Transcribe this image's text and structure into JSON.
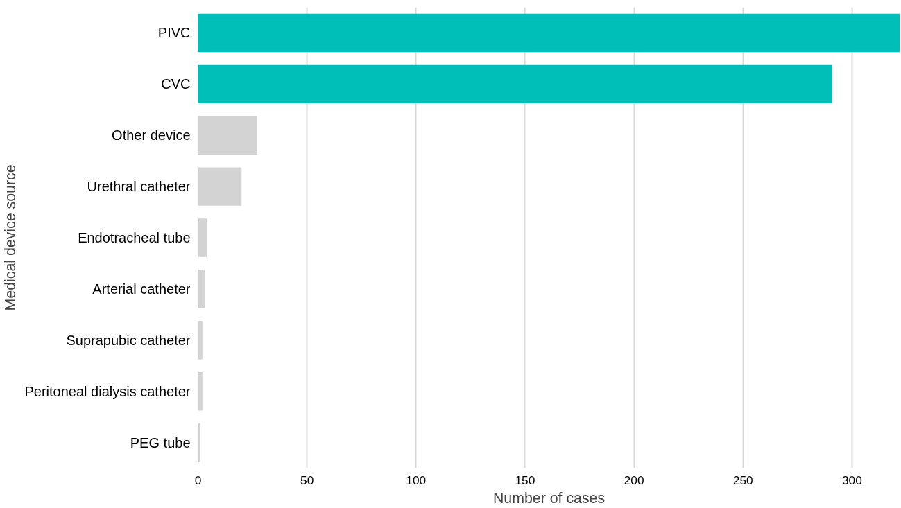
{
  "chart_data": {
    "type": "bar",
    "orientation": "horizontal",
    "xlabel": "Number of cases",
    "ylabel": "Medical device source",
    "categories": [
      "PIVC",
      "CVC",
      "Other device",
      "Urethral catheter",
      "Endotracheal tube",
      "Arterial catheter",
      "Suprapubic catheter",
      "Peritoneal dialysis catheter",
      "PEG tube"
    ],
    "values": [
      322,
      291,
      27,
      20,
      4,
      3,
      2,
      2,
      1
    ],
    "colors": [
      "#00bfb8",
      "#00bfb8",
      "#d3d3d3",
      "#d3d3d3",
      "#d3d3d3",
      "#d3d3d3",
      "#d3d3d3",
      "#d3d3d3",
      "#d3d3d3"
    ],
    "xlim": [
      0,
      322
    ],
    "xticks": [
      0,
      50,
      100,
      150,
      200,
      250,
      300
    ],
    "grid": "x"
  }
}
